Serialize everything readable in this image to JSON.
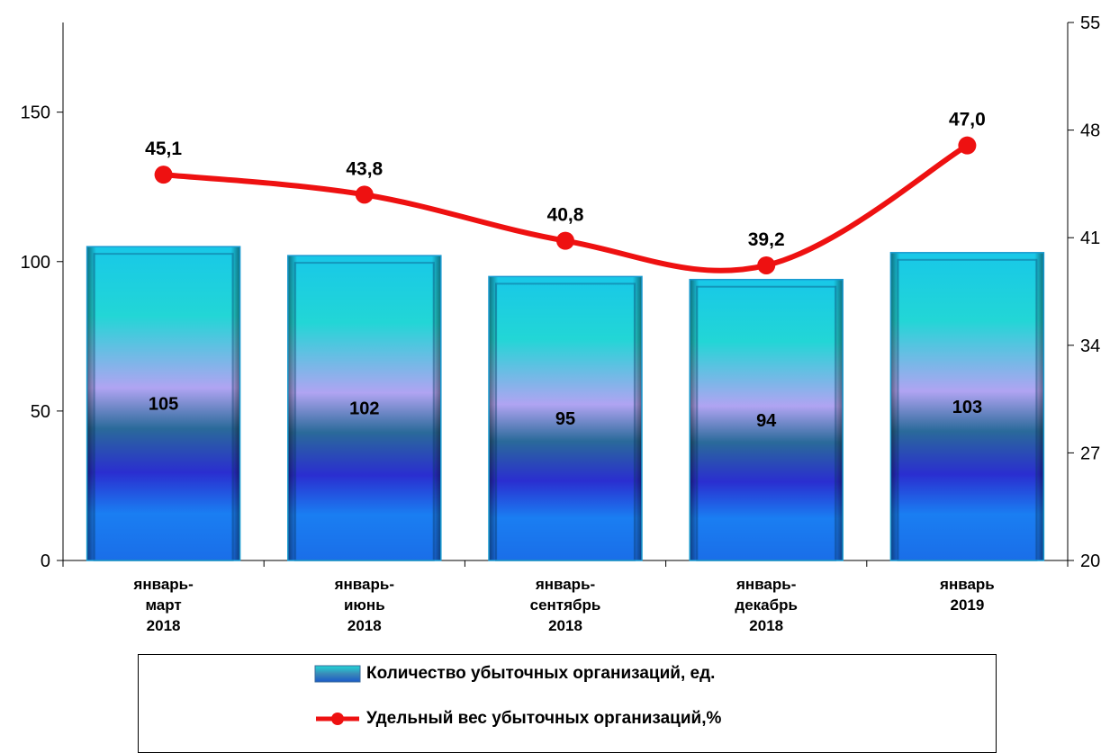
{
  "chart_data": {
    "type": "bar",
    "categories": [
      [
        "январь-",
        "март",
        "2018"
      ],
      [
        "январь-",
        "июнь",
        "2018"
      ],
      [
        "январь-",
        "сентябрь",
        "2018"
      ],
      [
        "январь-",
        "декабрь",
        "2018"
      ],
      [
        "январь",
        "2019"
      ]
    ],
    "series": [
      {
        "name": "Количество убыточных организаций, ед.",
        "type": "bar",
        "axis": "left",
        "values": [
          105,
          102,
          95,
          94,
          103
        ],
        "labels": [
          "105",
          "102",
          "95",
          "94",
          "103"
        ]
      },
      {
        "name": "Удельный вес убыточных организаций,%",
        "type": "line",
        "axis": "right",
        "values": [
          45.1,
          43.8,
          40.8,
          39.2,
          47.0
        ],
        "labels": [
          "45,1",
          "43,8",
          "40,8",
          "39,2",
          "47,0"
        ]
      }
    ],
    "y_left": {
      "min": 0,
      "max": 180,
      "ticks": [
        0,
        50,
        100,
        150
      ]
    },
    "y_right": {
      "min": 20,
      "max": 55,
      "ticks": [
        20,
        27,
        34,
        41,
        48,
        55
      ]
    },
    "legend_position": "bottom",
    "grid": false,
    "colors": {
      "bar_top": "#1fd0e0",
      "bar_mid": "#a7a0f0",
      "bar_dark": "#2a30d0",
      "bar_bottom": "#1a78f0",
      "line": "#ee1111"
    }
  }
}
